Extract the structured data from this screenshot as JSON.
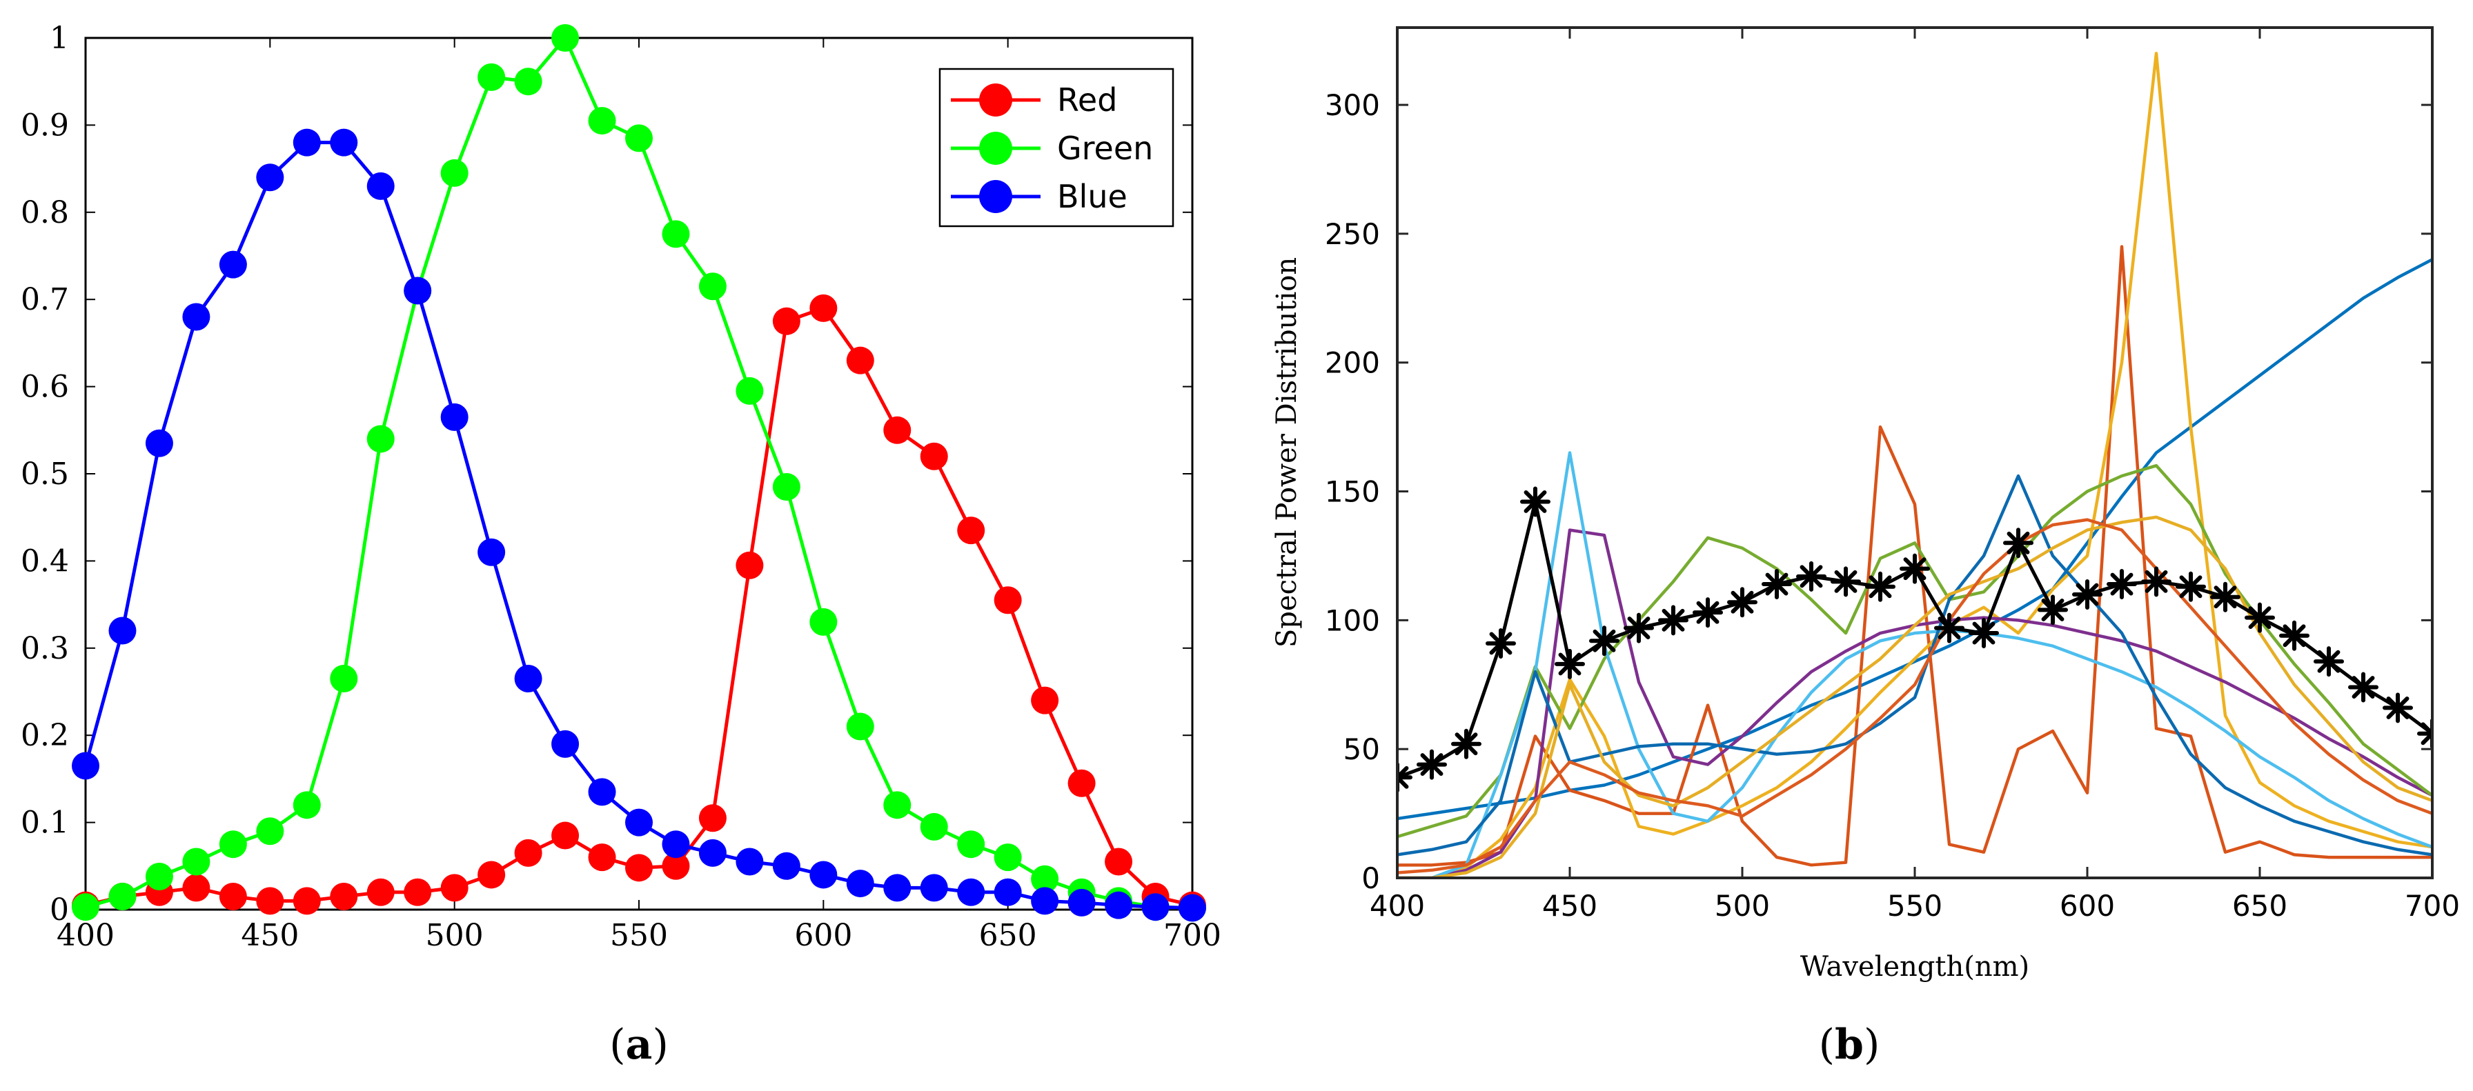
{
  "chart_data": [
    {
      "type": "line",
      "panel_label_open": "(",
      "panel_label_letter": "a",
      "panel_label_close": ")",
      "title": "",
      "xlabel": "",
      "ylabel": "",
      "xlim": [
        400,
        700
      ],
      "ylim": [
        0,
        1
      ],
      "xticks": [
        400,
        450,
        500,
        550,
        600,
        650,
        700
      ],
      "xtick_labels": [
        "400",
        "450",
        "500",
        "550",
        "600",
        "650",
        "700"
      ],
      "yticks": [
        0,
        0.1,
        0.2,
        0.3,
        0.4,
        0.5,
        0.6,
        0.7,
        0.8,
        0.9,
        1
      ],
      "ytick_labels": [
        "0",
        "0.1",
        "0.2",
        "0.3",
        "0.4",
        "0.5",
        "0.6",
        "0.7",
        "0.8",
        "0.9",
        "1"
      ],
      "grid": false,
      "legend_position": "top-right",
      "marker": "circle",
      "x": [
        400,
        410,
        420,
        430,
        440,
        450,
        460,
        470,
        480,
        490,
        500,
        510,
        520,
        530,
        540,
        550,
        560,
        570,
        580,
        590,
        600,
        610,
        620,
        630,
        640,
        650,
        660,
        670,
        680,
        690,
        700
      ],
      "series": [
        {
          "name": "Red",
          "color": "#ff0000",
          "values": [
            0.005,
            0.015,
            0.02,
            0.025,
            0.015,
            0.01,
            0.01,
            0.015,
            0.02,
            0.02,
            0.025,
            0.04,
            0.065,
            0.085,
            0.06,
            0.048,
            0.05,
            0.105,
            0.395,
            0.675,
            0.69,
            0.63,
            0.55,
            0.52,
            0.435,
            0.355,
            0.24,
            0.145,
            0.055,
            0.015,
            0.005
          ]
        },
        {
          "name": "Green",
          "color": "#00ff00",
          "values": [
            0.003,
            0.015,
            0.038,
            0.055,
            0.075,
            0.09,
            0.12,
            0.265,
            0.54,
            0.71,
            0.845,
            0.955,
            0.95,
            1.0,
            0.905,
            0.885,
            0.775,
            0.715,
            0.595,
            0.485,
            0.33,
            0.21,
            0.12,
            0.095,
            0.075,
            0.06,
            0.035,
            0.02,
            0.01,
            0.003,
            0.002
          ]
        },
        {
          "name": "Blue",
          "color": "#0000ff",
          "values": [
            0.165,
            0.32,
            0.535,
            0.68,
            0.74,
            0.84,
            0.88,
            0.88,
            0.83,
            0.71,
            0.565,
            0.41,
            0.265,
            0.19,
            0.135,
            0.1,
            0.075,
            0.065,
            0.055,
            0.05,
            0.04,
            0.03,
            0.025,
            0.025,
            0.02,
            0.02,
            0.01,
            0.008,
            0.005,
            0.003,
            0.002
          ]
        }
      ]
    },
    {
      "type": "line",
      "panel_label_open": "(",
      "panel_label_letter": "b",
      "panel_label_close": ")",
      "title": "",
      "xlabel": "Wavelength(nm)",
      "ylabel": "Spectral Power Distribution",
      "xlim": [
        400,
        700
      ],
      "ylim": [
        0,
        330
      ],
      "xticks": [
        400,
        450,
        500,
        550,
        600,
        650,
        700
      ],
      "xtick_labels": [
        "400",
        "450",
        "500",
        "550",
        "600",
        "650",
        "700"
      ],
      "yticks": [
        0,
        50,
        100,
        150,
        200,
        250,
        300
      ],
      "ytick_labels": [
        "0",
        "50",
        "100",
        "150",
        "200",
        "250",
        "300"
      ],
      "grid": false,
      "x": [
        400,
        410,
        420,
        430,
        440,
        450,
        460,
        470,
        480,
        490,
        500,
        510,
        520,
        530,
        540,
        550,
        560,
        570,
        580,
        590,
        600,
        610,
        620,
        630,
        640,
        650,
        660,
        670,
        680,
        690,
        700
      ],
      "series": [
        {
          "color": "#000000",
          "marker": "star",
          "values": [
            39,
            44,
            52,
            91,
            146,
            83,
            92,
            97,
            100,
            103,
            107,
            114,
            117,
            115,
            113,
            120,
            97,
            95,
            130,
            104,
            110,
            114,
            115,
            113,
            109,
            101,
            94,
            84,
            74,
            66,
            56
          ]
        },
        {
          "color": "#0072bd",
          "values": [
            23,
            25,
            27,
            29,
            31,
            34,
            36,
            40,
            45,
            50,
            55,
            61,
            67,
            72,
            78,
            84,
            90,
            97,
            104,
            112,
            130,
            148,
            165,
            175,
            185,
            195,
            205,
            215,
            225,
            233,
            240
          ]
        },
        {
          "color": "#d95319",
          "values": [
            5,
            5,
            6,
            10,
            55,
            34,
            30,
            25,
            25,
            67,
            22,
            8,
            5,
            6,
            175,
            145,
            13,
            10,
            50,
            57,
            33,
            245,
            58,
            55,
            10,
            14,
            9,
            8,
            8,
            8,
            8
          ]
        },
        {
          "color": "#edb120",
          "values": [
            0,
            0,
            4,
            15,
            35,
            77,
            55,
            20,
            17,
            22,
            28,
            35,
            45,
            58,
            72,
            85,
            98,
            105,
            95,
            112,
            125,
            200,
            320,
            175,
            63,
            37,
            28,
            22,
            18,
            14,
            12
          ]
        },
        {
          "color": "#7e2f8e",
          "values": [
            0,
            0,
            3,
            10,
            30,
            135,
            133,
            76,
            47,
            44,
            55,
            68,
            80,
            88,
            95,
            98,
            100,
            101,
            100,
            98,
            95,
            92,
            88,
            82,
            76,
            69,
            62,
            54,
            47,
            39,
            32
          ]
        },
        {
          "color": "#77ac30",
          "values": [
            16,
            20,
            24,
            40,
            82,
            58,
            85,
            100,
            115,
            132,
            128,
            120,
            108,
            95,
            124,
            130,
            108,
            111,
            125,
            140,
            150,
            156,
            160,
            145,
            118,
            100,
            83,
            68,
            52,
            42,
            32
          ]
        },
        {
          "color": "#4dbeee",
          "values": [
            0,
            0,
            5,
            40,
            80,
            165,
            90,
            50,
            25,
            22,
            35,
            55,
            72,
            85,
            92,
            95,
            96,
            95,
            93,
            90,
            85,
            80,
            74,
            66,
            57,
            47,
            39,
            30,
            23,
            17,
            12
          ]
        },
        {
          "color": "#0b6ab0",
          "values": [
            9,
            11,
            14,
            30,
            80,
            45,
            48,
            51,
            52,
            52,
            50,
            48,
            49,
            52,
            60,
            70,
            108,
            125,
            156,
            125,
            110,
            95,
            70,
            48,
            35,
            28,
            22,
            18,
            14,
            11,
            9
          ]
        },
        {
          "color": "#e6ae25",
          "values": [
            0,
            0,
            2,
            8,
            25,
            75,
            45,
            32,
            28,
            35,
            45,
            55,
            65,
            75,
            85,
            98,
            110,
            115,
            120,
            128,
            135,
            138,
            140,
            135,
            120,
            95,
            75,
            60,
            45,
            35,
            30
          ]
        },
        {
          "color": "#dd5a1f",
          "values": [
            2,
            3,
            5,
            12,
            30,
            45,
            40,
            33,
            30,
            28,
            24,
            32,
            40,
            50,
            62,
            75,
            100,
            118,
            130,
            137,
            139,
            135,
            120,
            105,
            90,
            75,
            60,
            48,
            38,
            30,
            25
          ]
        }
      ]
    }
  ]
}
